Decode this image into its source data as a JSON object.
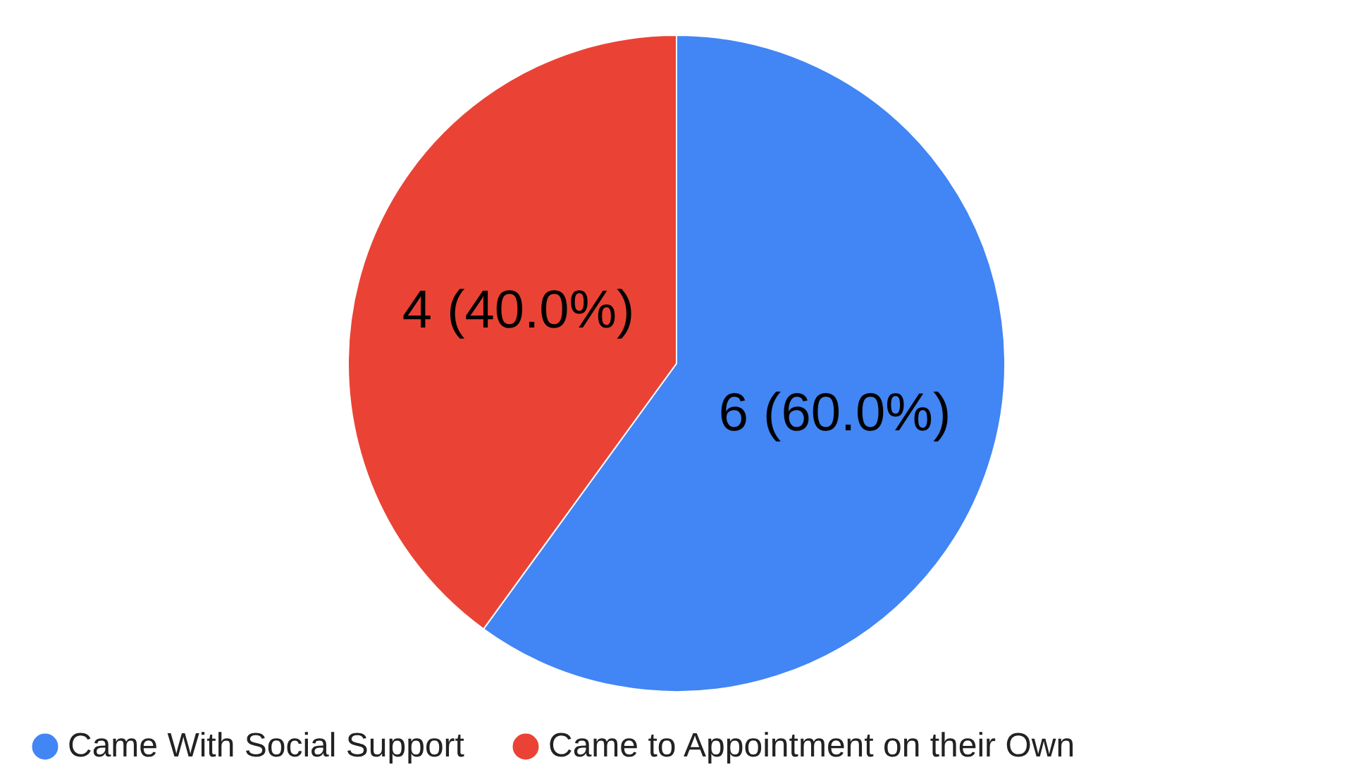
{
  "chart_data": {
    "type": "pie",
    "categories": [
      "Came With Social Support",
      "Came to Appointment on their Own"
    ],
    "values": [
      6,
      4
    ],
    "colors": [
      "#4285f4",
      "#ea4335"
    ],
    "value_labels": [
      "6 (60.0%)",
      "4 (40.0%)"
    ],
    "legend": "bottom"
  }
}
